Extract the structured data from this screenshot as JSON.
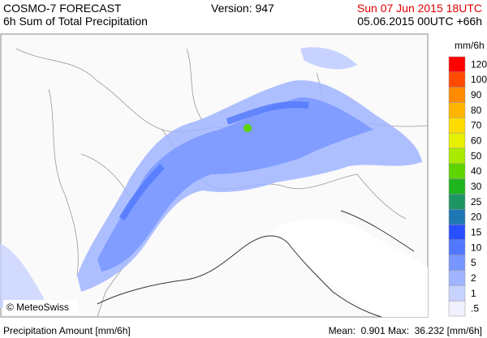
{
  "header": {
    "title": "COSMO-7 FORECAST",
    "subtitle": "6h Sum of Total Precipitation",
    "version": "Version: 947",
    "valid_time": "Sun 07 Jun 2015 18UTC",
    "run_time": "05.06.2015 00UTC +66h"
  },
  "map": {
    "copyright": "© MeteoSwiss"
  },
  "legend": {
    "unit": "mm/6h",
    "items": [
      {
        "label": "120",
        "color": "#ff0000"
      },
      {
        "label": "100",
        "color": "#ff4a00"
      },
      {
        "label": "90",
        "color": "#ff8a00"
      },
      {
        "label": "80",
        "color": "#ffb400"
      },
      {
        "label": "70",
        "color": "#ffdc00"
      },
      {
        "label": "60",
        "color": "#e6f000"
      },
      {
        "label": "50",
        "color": "#aaea00"
      },
      {
        "label": "40",
        "color": "#5ed400"
      },
      {
        "label": "30",
        "color": "#1eb41e"
      },
      {
        "label": "25",
        "color": "#1e9664"
      },
      {
        "label": "20",
        "color": "#1e78b4"
      },
      {
        "label": "15",
        "color": "#2850ff"
      },
      {
        "label": "10",
        "color": "#5078ff"
      },
      {
        "label": "5",
        "color": "#7896ff"
      },
      {
        "label": "2",
        "color": "#a0b4ff"
      },
      {
        "label": "1",
        "color": "#c8d2ff"
      },
      {
        "label": ".5",
        "color": "#f0f0ff"
      }
    ]
  },
  "footer": {
    "left": "Precipitation Amount [mm/6h]",
    "right": "Mean:  0.901 Max:  36.232 [mm/6h]"
  }
}
